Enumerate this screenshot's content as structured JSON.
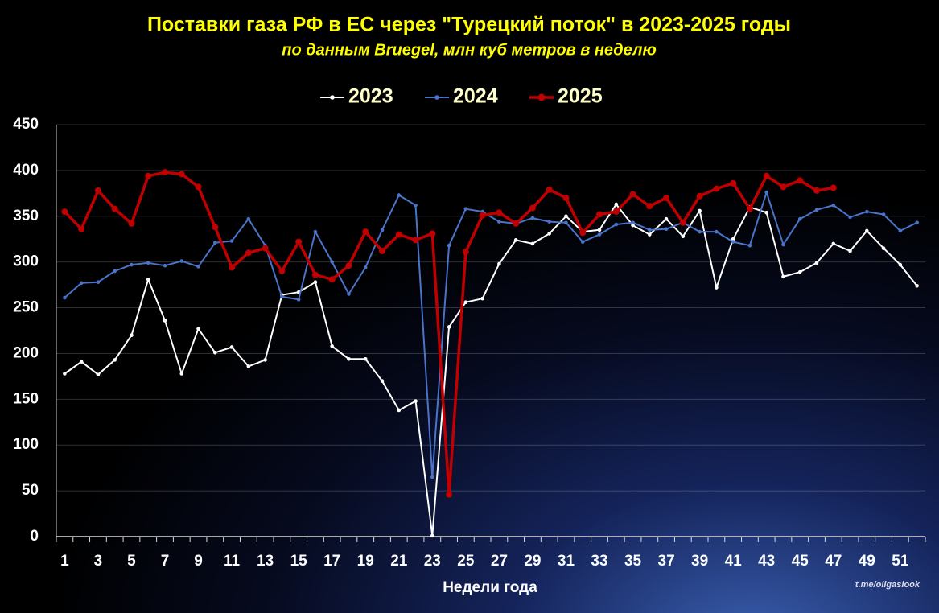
{
  "chart_data": {
    "type": "line",
    "title": "Поставки газа РФ в ЕС через \"Турецкий поток\" в 2023-2025 годы",
    "subtitle": "по данным Bruegel, млн куб метров в неделю",
    "x_label": "Недели года",
    "source": "t.me/oilgaslook",
    "categories": [
      1,
      null,
      3,
      null,
      5,
      null,
      7,
      null,
      9,
      null,
      11,
      null,
      13,
      null,
      15,
      null,
      17,
      null,
      19,
      null,
      21,
      null,
      23,
      null,
      25,
      null,
      27,
      null,
      29,
      null,
      31,
      null,
      33,
      null,
      35,
      null,
      37,
      null,
      39,
      null,
      41,
      null,
      43,
      null,
      45,
      null,
      47,
      null,
      49,
      null,
      51,
      null
    ],
    "ylim": [
      0,
      450
    ],
    "yticks": [
      0,
      50,
      100,
      150,
      200,
      250,
      300,
      350,
      400,
      450
    ],
    "grid": true,
    "legend": "top",
    "series": [
      {
        "name": "2023",
        "color": "#ffffff",
        "values": [
          178,
          191,
          177,
          193,
          220,
          281,
          236,
          178,
          227,
          201,
          207,
          186,
          193,
          264,
          267,
          278,
          208,
          194,
          194,
          170,
          138,
          148,
          1,
          229,
          256,
          260,
          298,
          324,
          320,
          331,
          350,
          333,
          335,
          363,
          340,
          330,
          347,
          328,
          356,
          272,
          325,
          360,
          354,
          284,
          289,
          299,
          320,
          312,
          334,
          315,
          297,
          274
        ]
      },
      {
        "name": "2024",
        "color": "#4a74c9",
        "values": [
          261,
          277,
          278,
          290,
          297,
          299,
          296,
          301,
          295,
          321,
          323,
          347,
          318,
          262,
          259,
          333,
          300,
          265,
          294,
          335,
          373,
          362,
          65,
          318,
          358,
          355,
          344,
          342,
          348,
          344,
          343,
          322,
          330,
          341,
          343,
          335,
          336,
          343,
          333,
          333,
          322,
          318,
          376,
          319,
          347,
          357,
          362,
          349,
          355,
          352,
          334,
          343
        ]
      },
      {
        "name": "2025",
        "color": "#c00000",
        "values": [
          355,
          336,
          378,
          358,
          342,
          394,
          398,
          396,
          382,
          338,
          294,
          310,
          315,
          290,
          322,
          286,
          281,
          296,
          333,
          312,
          330,
          324,
          331,
          46,
          311,
          351,
          354,
          342,
          359,
          379,
          370,
          332,
          352,
          355,
          374,
          361,
          370,
          343,
          372,
          380,
          386,
          358,
          394,
          382,
          389,
          378,
          381,
          null,
          null,
          null,
          null,
          null
        ]
      }
    ]
  }
}
